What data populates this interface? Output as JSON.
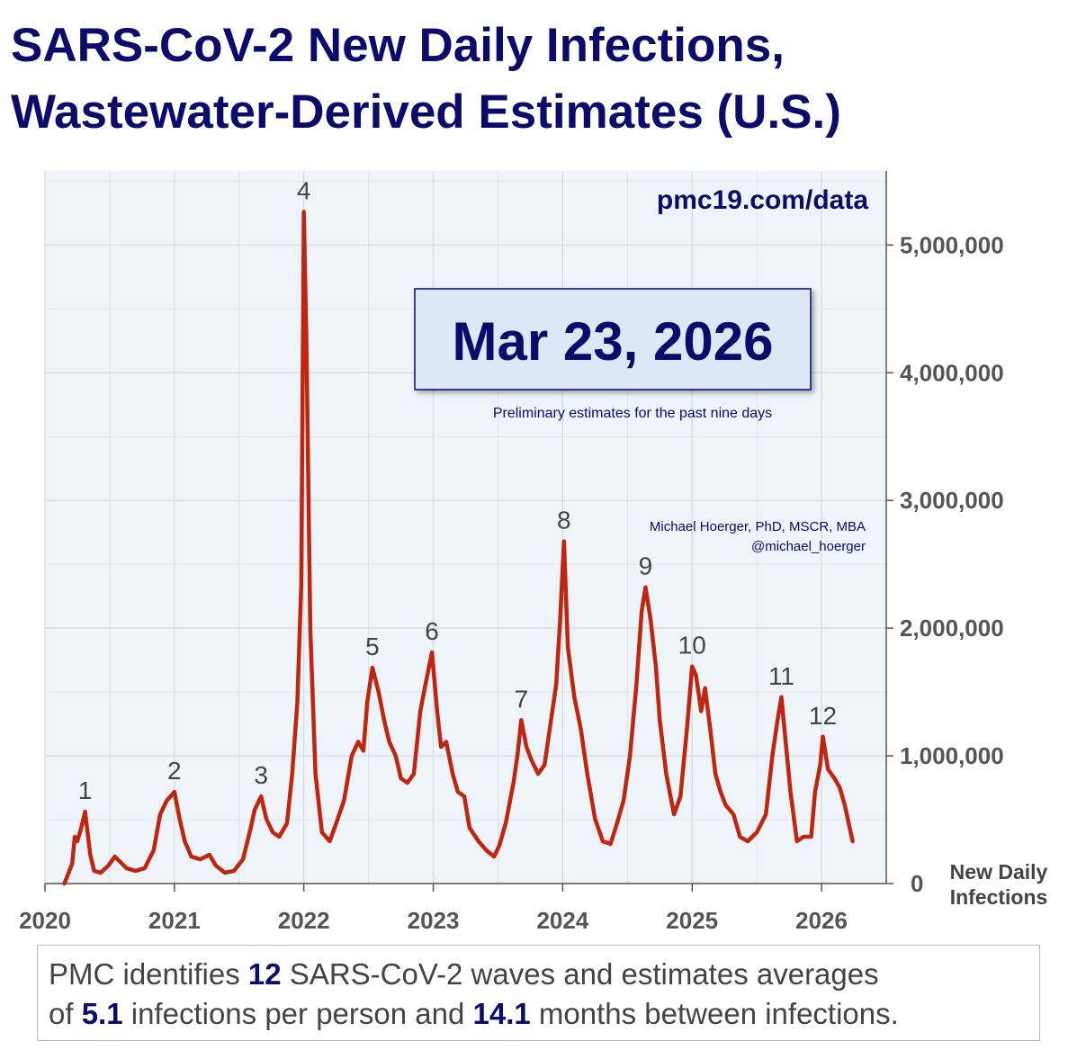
{
  "chart_data": {
    "type": "line",
    "title": "SARS-CoV-2 New Daily Infections, Wastewater-Derived Estimates (U.S.)",
    "ylabel": "New Daily Infections",
    "source": "pmc19.com/data",
    "date_box": "Mar 23, 2026",
    "date_note": "Preliminary estimates for the past nine days",
    "author": "Michael Hoerger, PhD, MSCR, MBA",
    "handle": "@michael_hoerger",
    "xlim": [
      2020,
      2026.5
    ],
    "xticks": [
      2020,
      2021,
      2022,
      2023,
      2024,
      2025,
      2026
    ],
    "xminor": [
      2020.5,
      2021.5,
      2022.5,
      2023.5,
      2024.5,
      2025.5
    ],
    "ylim": [
      0,
      5580000
    ],
    "yticks": [
      0,
      {
        "value": 1000000,
        "label": "1,000,000"
      },
      {
        "value": 2000000,
        "label": "2,000,000"
      },
      {
        "value": 3000000,
        "label": "3,000,000"
      },
      {
        "value": 4000000,
        "label": "4,000,000"
      },
      {
        "value": 5000000,
        "label": "5,000,000"
      }
    ],
    "yminor": [
      500000,
      1500000,
      2500000,
      3500000,
      4500000,
      5500000
    ],
    "grid": true,
    "x": [
      2020.15,
      2020.21,
      2020.23,
      2020.25,
      2020.28,
      2020.31,
      2020.35,
      2020.38,
      2020.43,
      2020.49,
      2020.54,
      2020.63,
      2020.7,
      2020.77,
      2020.84,
      2020.89,
      2020.94,
      2021.0,
      2021.04,
      2021.08,
      2021.13,
      2021.2,
      2021.27,
      2021.32,
      2021.39,
      2021.46,
      2021.53,
      2021.59,
      2021.62,
      2021.67,
      2021.71,
      2021.76,
      2021.81,
      2021.87,
      2021.91,
      2021.95,
      2021.98,
      2022.0,
      2022.02,
      2022.05,
      2022.09,
      2022.14,
      2022.2,
      2022.25,
      2022.31,
      2022.37,
      2022.42,
      2022.46,
      2022.49,
      2022.53,
      2022.58,
      2022.62,
      2022.66,
      2022.71,
      2022.75,
      2022.8,
      2022.85,
      2022.9,
      2022.94,
      2022.99,
      2023.03,
      2023.06,
      2023.1,
      2023.15,
      2023.19,
      2023.24,
      2023.28,
      2023.35,
      2023.41,
      2023.47,
      2023.51,
      2023.56,
      2023.62,
      2023.65,
      2023.68,
      2023.72,
      2023.76,
      2023.81,
      2023.86,
      2023.91,
      2023.95,
      2023.98,
      2024.01,
      2024.04,
      2024.09,
      2024.14,
      2024.19,
      2024.25,
      2024.31,
      2024.37,
      2024.42,
      2024.47,
      2024.52,
      2024.57,
      2024.61,
      2024.64,
      2024.68,
      2024.72,
      2024.75,
      2024.8,
      2024.86,
      2024.91,
      2024.96,
      2025.0,
      2025.03,
      2025.07,
      2025.1,
      2025.14,
      2025.18,
      2025.22,
      2025.26,
      2025.32,
      2025.37,
      2025.43,
      2025.5,
      2025.57,
      2025.62,
      2025.66,
      2025.69,
      2025.72,
      2025.76,
      2025.81,
      2025.86,
      2025.92,
      2025.95,
      2025.99,
      2026.01,
      2026.05,
      2026.1,
      2026.14,
      2026.18,
      2026.24
    ],
    "series": [
      {
        "color": "#c0260f",
        "values": [
          0,
          155000,
          366000,
          331000,
          437000,
          563000,
          225000,
          99000,
          85000,
          141000,
          211000,
          120000,
          99000,
          120000,
          261000,
          542000,
          648000,
          718000,
          507000,
          331000,
          211000,
          190000,
          225000,
          141000,
          85000,
          99000,
          190000,
          437000,
          577000,
          683000,
          507000,
          401000,
          366000,
          472000,
          859000,
          1420000,
          2340000,
          5260000,
          4240000,
          1990000,
          859000,
          401000,
          331000,
          472000,
          648000,
          1000000,
          1110000,
          1040000,
          1420000,
          1690000,
          1490000,
          1280000,
          1110000,
          1000000,
          824000,
          789000,
          859000,
          1350000,
          1560000,
          1810000,
          1350000,
          1070000,
          1110000,
          859000,
          718000,
          683000,
          437000,
          331000,
          261000,
          211000,
          296000,
          472000,
          789000,
          1000000,
          1280000,
          1070000,
          965000,
          859000,
          930000,
          1280000,
          1560000,
          2060000,
          2680000,
          1850000,
          1460000,
          1210000,
          859000,
          507000,
          331000,
          310000,
          472000,
          648000,
          1000000,
          1560000,
          2130000,
          2320000,
          2060000,
          1700000,
          1280000,
          859000,
          542000,
          683000,
          1210000,
          1700000,
          1630000,
          1350000,
          1530000,
          1210000,
          859000,
          718000,
          613000,
          542000,
          366000,
          331000,
          401000,
          542000,
          1000000,
          1280000,
          1460000,
          1140000,
          718000,
          331000,
          366000,
          366000,
          718000,
          930000,
          1150000,
          894000,
          824000,
          753000,
          613000,
          331000
        ]
      }
    ],
    "annotations": [
      {
        "text": "1",
        "x": 2020.31,
        "y": 563000
      },
      {
        "text": "2",
        "x": 2021.0,
        "y": 718000
      },
      {
        "text": "3",
        "x": 2021.67,
        "y": 683000
      },
      {
        "text": "4",
        "x": 2022.0,
        "y": 5260000
      },
      {
        "text": "5",
        "x": 2022.53,
        "y": 1690000
      },
      {
        "text": "6",
        "x": 2022.99,
        "y": 1810000
      },
      {
        "text": "7",
        "x": 2023.68,
        "y": 1280000
      },
      {
        "text": "8",
        "x": 2024.01,
        "y": 2680000
      },
      {
        "text": "9",
        "x": 2024.64,
        "y": 2320000
      },
      {
        "text": "10",
        "x": 2025.0,
        "y": 1700000
      },
      {
        "text": "11",
        "x": 2025.69,
        "y": 1460000
      },
      {
        "text": "12",
        "x": 2026.01,
        "y": 1150000
      }
    ]
  },
  "footer": {
    "text_1": "PMC identifies ",
    "waves": 12,
    "text_2": " SARS-CoV-2 waves and estimates averages",
    "text_3": "of ",
    "infections_per_person": 5.1,
    "text_4": " infections per person and ",
    "months_between": 14.1,
    "text_5": " months between infections."
  }
}
